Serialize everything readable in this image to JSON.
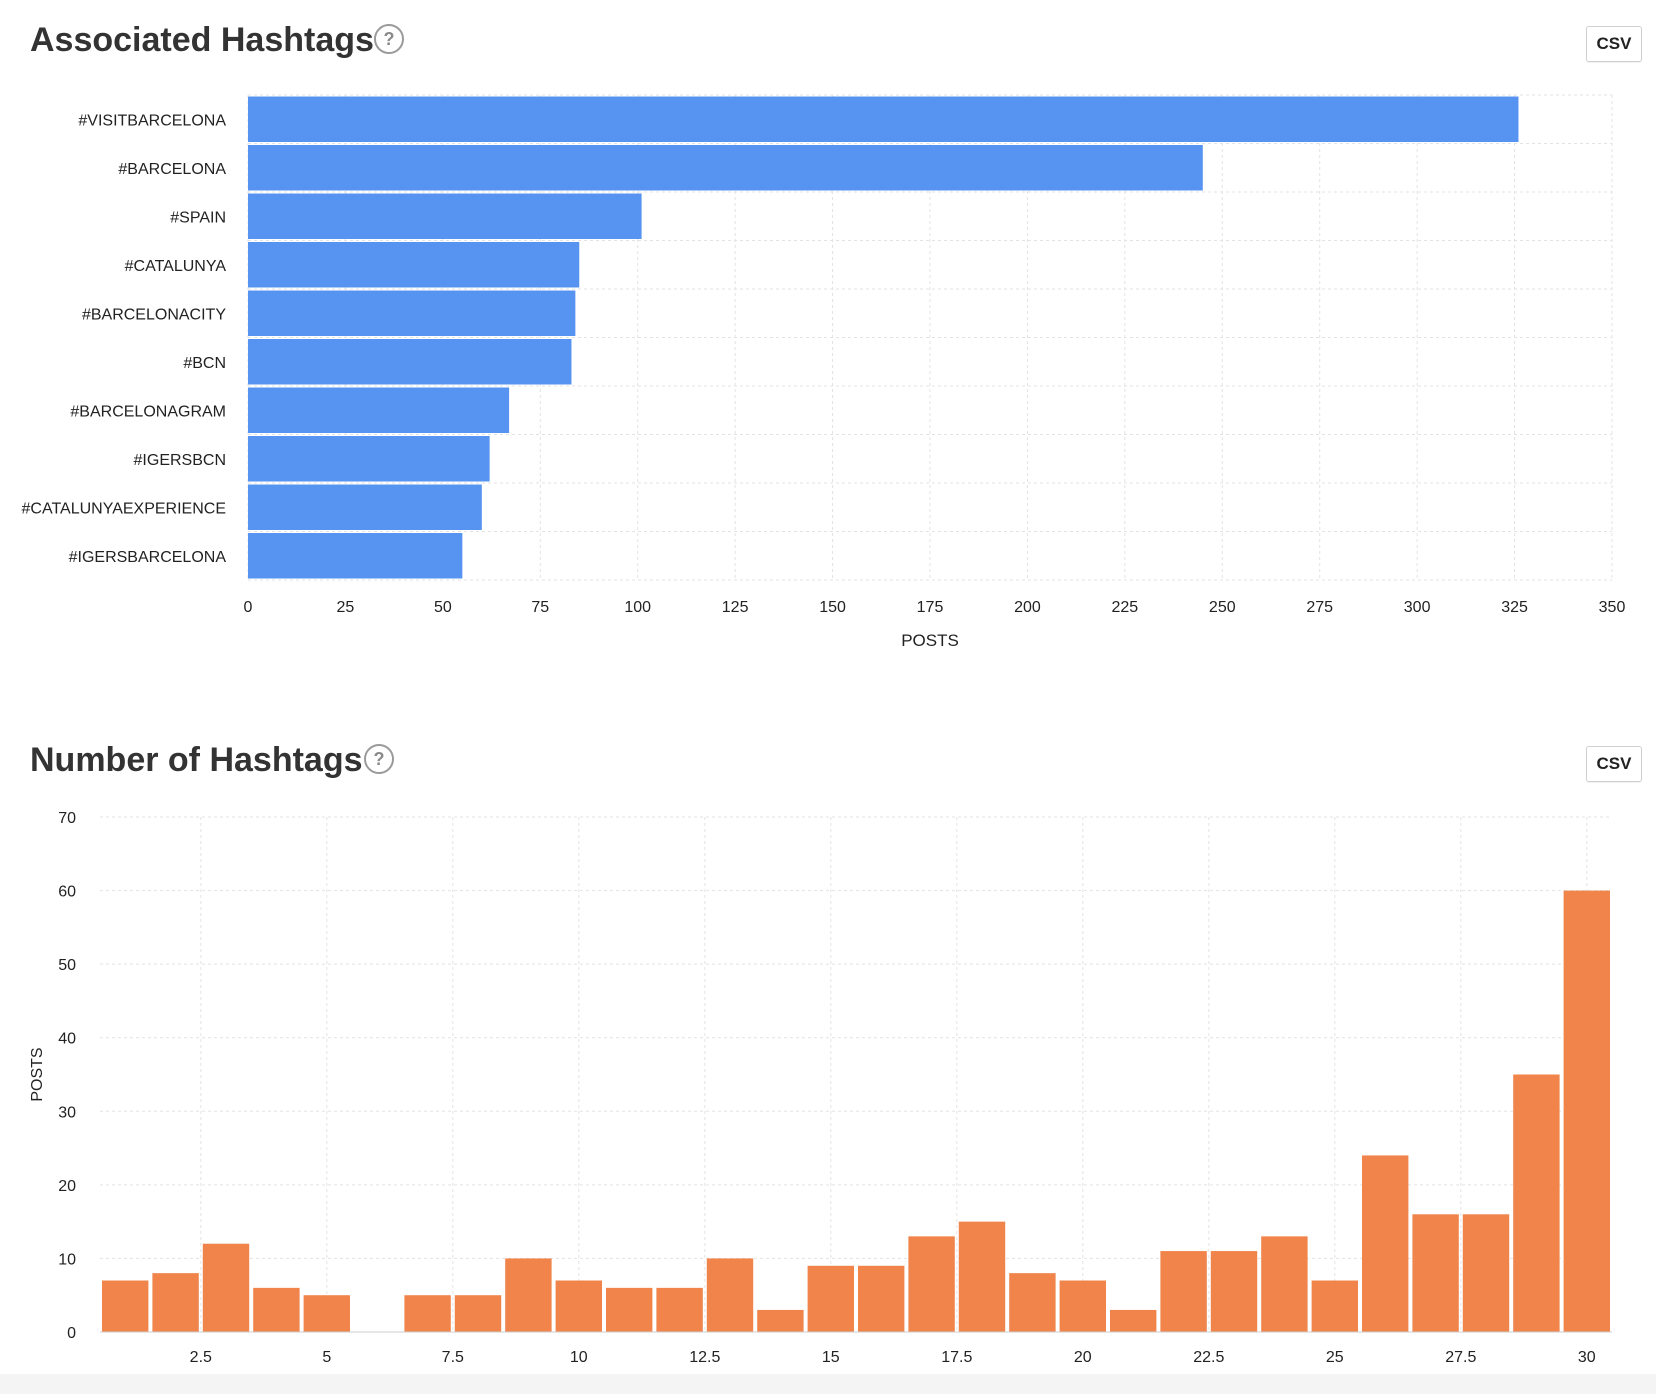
{
  "colors": {
    "bar_blue": "#5794f2",
    "bar_orange": "#f0844a",
    "grid": "#e3e3e3"
  },
  "panels": {
    "associated": {
      "title": "Associated Hashtags",
      "help_symbol": "?",
      "csv_label": "CSV"
    },
    "number": {
      "title": "Number of Hashtags",
      "help_symbol": "?",
      "csv_label": "CSV"
    }
  },
  "chart_data": [
    {
      "type": "bar",
      "orientation": "horizontal",
      "categories": [
        "#VISITBARCELONA",
        "#BARCELONA",
        "#SPAIN",
        "#CATALUNYA",
        "#BARCELONACITY",
        "#BCN",
        "#BARCELONAGRAM",
        "#IGERSBCN",
        "#CATALUNYAEXPERIENCE",
        "#IGERSBARCELONA"
      ],
      "values": [
        326,
        245,
        101,
        85,
        84,
        83,
        67,
        62,
        60,
        55
      ],
      "title": "Associated Hashtags",
      "xlabel": "POSTS",
      "ylabel": "",
      "xlim": [
        0,
        350
      ],
      "xticks": [
        "0",
        "25",
        "50",
        "75",
        "100",
        "125",
        "150",
        "175",
        "200",
        "225",
        "250",
        "275",
        "300",
        "325",
        "350"
      ],
      "grid": true,
      "color": "#5794f2"
    },
    {
      "type": "bar",
      "orientation": "vertical",
      "x": [
        1,
        2,
        3,
        4,
        5,
        6,
        7,
        8,
        9,
        10,
        11,
        12,
        13,
        14,
        15,
        16,
        17,
        18,
        19,
        20,
        21,
        22,
        23,
        24,
        25,
        26,
        27,
        28,
        29,
        30
      ],
      "values": [
        7,
        8,
        12,
        6,
        5,
        0,
        5,
        5,
        10,
        7,
        6,
        6,
        10,
        3,
        9,
        9,
        13,
        15,
        8,
        7,
        3,
        11,
        11,
        13,
        7,
        24,
        16,
        16,
        35,
        60
      ],
      "title": "Number of Hashtags",
      "xlabel": "",
      "ylabel": "POSTS",
      "xlim": [
        0.5,
        30.5
      ],
      "ylim": [
        0,
        70
      ],
      "xticks": [
        "2.5",
        "5",
        "7.5",
        "10",
        "12.5",
        "15",
        "17.5",
        "20",
        "22.5",
        "25",
        "27.5",
        "30"
      ],
      "yticks": [
        "0",
        "10",
        "20",
        "30",
        "40",
        "50",
        "60",
        "70"
      ],
      "grid": true,
      "color": "#f0844a"
    }
  ]
}
